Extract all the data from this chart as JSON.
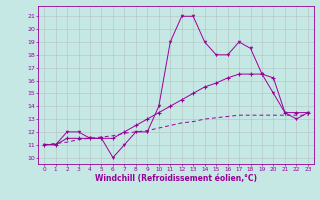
{
  "x": [
    0,
    1,
    2,
    3,
    4,
    5,
    6,
    7,
    8,
    9,
    10,
    11,
    12,
    13,
    14,
    15,
    16,
    17,
    18,
    19,
    20,
    21,
    22,
    23
  ],
  "line1": [
    11,
    11,
    12,
    12,
    11.5,
    11.5,
    10,
    11,
    12,
    12,
    14,
    19,
    21,
    21,
    19,
    18,
    18,
    19,
    18.5,
    16.5,
    15,
    13.5,
    13,
    13.5
  ],
  "line2": [
    11,
    11,
    11.5,
    11.5,
    11.5,
    11.5,
    11.5,
    12,
    12.5,
    13,
    13.5,
    14,
    14.5,
    15,
    15.5,
    15.8,
    16.2,
    16.5,
    16.5,
    16.5,
    16.2,
    13.5,
    13.5,
    13.5
  ],
  "line3": [
    11,
    11.1,
    11.2,
    11.4,
    11.5,
    11.6,
    11.7,
    11.9,
    12.0,
    12.1,
    12.3,
    12.5,
    12.7,
    12.8,
    13.0,
    13.1,
    13.2,
    13.3,
    13.3,
    13.3,
    13.3,
    13.3,
    13.3,
    13.3
  ],
  "bg_color": "#c5e8e5",
  "line_color": "#990099",
  "grid_color": "#b0b0b0",
  "ylabel_values": [
    10,
    11,
    12,
    13,
    14,
    15,
    16,
    17,
    18,
    19,
    20,
    21
  ],
  "xlabel": "Windchill (Refroidissement éolien,°C)",
  "ylim": [
    9.5,
    21.8
  ],
  "xlim": [
    -0.5,
    23.5
  ]
}
